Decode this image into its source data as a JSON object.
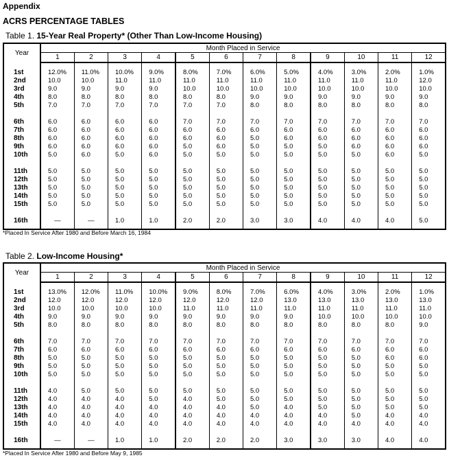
{
  "page": {
    "appendix": "Appendix",
    "heading": "ACRS PERCENTAGE TABLES"
  },
  "tables": [
    {
      "prefix": "Table 1.",
      "title": "15-Year Real Property* (Other Than Low-Income Housing)",
      "year_header": "Year",
      "month_header": "Month Placed in Service",
      "months": [
        "1",
        "2",
        "3",
        "4",
        "5",
        "6",
        "7",
        "8",
        "9",
        "10",
        "11",
        "12"
      ],
      "rows": [
        {
          "year": "1st",
          "values": [
            "12.0%",
            "11.0%",
            "10.0%",
            "9.0%",
            "8.0%",
            "7.0%",
            "6.0%",
            "5.0%",
            "4.0%",
            "3.0%",
            "2.0%",
            "1.0%"
          ]
        },
        {
          "year": "2nd",
          "values": [
            "10.0",
            "10.0",
            "11.0",
            "11.0",
            "11.0",
            "11.0",
            "11.0",
            "11.0",
            "11.0",
            "11.0",
            "11.0",
            "12.0"
          ]
        },
        {
          "year": "3rd",
          "values": [
            "9.0",
            "9.0",
            "9.0",
            "9.0",
            "10.0",
            "10.0",
            "10.0",
            "10.0",
            "10.0",
            "10.0",
            "10.0",
            "10.0"
          ]
        },
        {
          "year": "4th",
          "values": [
            "8.0",
            "8.0",
            "8.0",
            "8.0",
            "8.0",
            "8.0",
            "9.0",
            "9.0",
            "9.0",
            "9.0",
            "9.0",
            "9.0"
          ]
        },
        {
          "year": "5th",
          "values": [
            "7.0",
            "7.0",
            "7.0",
            "7.0",
            "7.0",
            "7.0",
            "8.0",
            "8.0",
            "8.0",
            "8.0",
            "8.0",
            "8.0"
          ]
        },
        {
          "year": "6th",
          "values": [
            "6.0",
            "6.0",
            "6.0",
            "6.0",
            "7.0",
            "7.0",
            "7.0",
            "7.0",
            "7.0",
            "7.0",
            "7.0",
            "7.0"
          ]
        },
        {
          "year": "7th",
          "values": [
            "6.0",
            "6.0",
            "6.0",
            "6.0",
            "6.0",
            "6.0",
            "6.0",
            "6.0",
            "6.0",
            "6.0",
            "6.0",
            "6.0"
          ]
        },
        {
          "year": "8th",
          "values": [
            "6.0",
            "6.0",
            "6.0",
            "6.0",
            "6.0",
            "6.0",
            "5.0",
            "6.0",
            "6.0",
            "6.0",
            "6.0",
            "6.0"
          ]
        },
        {
          "year": "9th",
          "values": [
            "6.0",
            "6.0",
            "6.0",
            "6.0",
            "5.0",
            "6.0",
            "5.0",
            "5.0",
            "5.0",
            "6.0",
            "6.0",
            "6.0"
          ]
        },
        {
          "year": "10th",
          "values": [
            "5.0",
            "6.0",
            "5.0",
            "6.0",
            "5.0",
            "5.0",
            "5.0",
            "5.0",
            "5.0",
            "5.0",
            "6.0",
            "5.0"
          ]
        },
        {
          "year": "11th",
          "values": [
            "5.0",
            "5.0",
            "5.0",
            "5.0",
            "5.0",
            "5.0",
            "5.0",
            "5.0",
            "5.0",
            "5.0",
            "5.0",
            "5.0"
          ]
        },
        {
          "year": "12th",
          "values": [
            "5.0",
            "5.0",
            "5.0",
            "5.0",
            "5.0",
            "5.0",
            "5.0",
            "5.0",
            "5.0",
            "5.0",
            "5.0",
            "5.0"
          ]
        },
        {
          "year": "13th",
          "values": [
            "5.0",
            "5.0",
            "5.0",
            "5.0",
            "5.0",
            "5.0",
            "5.0",
            "5.0",
            "5.0",
            "5.0",
            "5.0",
            "5.0"
          ]
        },
        {
          "year": "14th",
          "values": [
            "5.0",
            "5.0",
            "5.0",
            "5.0",
            "5.0",
            "5.0",
            "5.0",
            "5.0",
            "5.0",
            "5.0",
            "5.0",
            "5.0"
          ]
        },
        {
          "year": "15th",
          "values": [
            "5.0",
            "5.0",
            "5.0",
            "5.0",
            "5.0",
            "5.0",
            "5.0",
            "5.0",
            "5.0",
            "5.0",
            "5.0",
            "5.0"
          ]
        },
        {
          "year": "16th",
          "values": [
            "—",
            "—",
            "1.0",
            "1.0",
            "2.0",
            "2.0",
            "3.0",
            "3.0",
            "4.0",
            "4.0",
            "4.0",
            "5.0"
          ]
        }
      ],
      "footnote": "*Placed In Service After 1980 and Before March 16, 1984"
    },
    {
      "prefix": "Table 2.",
      "title": "Low-Income Housing*",
      "year_header": "Year",
      "month_header": "Month Placed in Service",
      "months": [
        "1",
        "2",
        "3",
        "4",
        "5",
        "6",
        "7",
        "8",
        "9",
        "10",
        "11",
        "12"
      ],
      "rows": [
        {
          "year": "1st",
          "values": [
            "13.0%",
            "12.0%",
            "11.0%",
            "10.0%",
            "9.0%",
            "8.0%",
            "7.0%",
            "6.0%",
            "4.0%",
            "3.0%",
            "2.0%",
            "1.0%"
          ]
        },
        {
          "year": "2nd",
          "values": [
            "12.0",
            "12.0",
            "12.0",
            "12.0",
            "12.0",
            "12.0",
            "12.0",
            "13.0",
            "13.0",
            "13.0",
            "13.0",
            "13.0"
          ]
        },
        {
          "year": "3rd",
          "values": [
            "10.0",
            "10.0",
            "10.0",
            "10.0",
            "11.0",
            "11.0",
            "11.0",
            "11.0",
            "11.0",
            "11.0",
            "11.0",
            "11.0"
          ]
        },
        {
          "year": "4th",
          "values": [
            "9.0",
            "9.0",
            "9.0",
            "9.0",
            "9.0",
            "9.0",
            "9.0",
            "9.0",
            "10.0",
            "10.0",
            "10.0",
            "10.0"
          ]
        },
        {
          "year": "5th",
          "values": [
            "8.0",
            "8.0",
            "8.0",
            "8.0",
            "8.0",
            "8.0",
            "8.0",
            "8.0",
            "8.0",
            "8.0",
            "8.0",
            "9.0"
          ]
        },
        {
          "year": "6th",
          "values": [
            "7.0",
            "7.0",
            "7.0",
            "7.0",
            "7.0",
            "7.0",
            "7.0",
            "7.0",
            "7.0",
            "7.0",
            "7.0",
            "7.0"
          ]
        },
        {
          "year": "7th",
          "values": [
            "6.0",
            "6.0",
            "6.0",
            "6.0",
            "6.0",
            "6.0",
            "6.0",
            "6.0",
            "6.0",
            "6.0",
            "6.0",
            "6.0"
          ]
        },
        {
          "year": "8th",
          "values": [
            "5.0",
            "5.0",
            "5.0",
            "5.0",
            "5.0",
            "5.0",
            "5.0",
            "5.0",
            "5.0",
            "5.0",
            "6.0",
            "6.0"
          ]
        },
        {
          "year": "9th",
          "values": [
            "5.0",
            "5.0",
            "5.0",
            "5.0",
            "5.0",
            "5.0",
            "5.0",
            "5.0",
            "5.0",
            "5.0",
            "5.0",
            "5.0"
          ]
        },
        {
          "year": "10th",
          "values": [
            "5.0",
            "5.0",
            "5.0",
            "5.0",
            "5.0",
            "5.0",
            "5.0",
            "5.0",
            "5.0",
            "5.0",
            "5.0",
            "5.0"
          ]
        },
        {
          "year": "11th",
          "values": [
            "4.0",
            "5.0",
            "5.0",
            "5.0",
            "5.0",
            "5.0",
            "5.0",
            "5.0",
            "5.0",
            "5.0",
            "5.0",
            "5.0"
          ]
        },
        {
          "year": "12th",
          "values": [
            "4.0",
            "4.0",
            "4.0",
            "5.0",
            "4.0",
            "5.0",
            "5.0",
            "5.0",
            "5.0",
            "5.0",
            "5.0",
            "5.0"
          ]
        },
        {
          "year": "13th",
          "values": [
            "4.0",
            "4.0",
            "4.0",
            "4.0",
            "4.0",
            "4.0",
            "5.0",
            "4.0",
            "5.0",
            "5.0",
            "5.0",
            "5.0"
          ]
        },
        {
          "year": "14th",
          "values": [
            "4.0",
            "4.0",
            "4.0",
            "4.0",
            "4.0",
            "4.0",
            "4.0",
            "4.0",
            "4.0",
            "5.0",
            "4.0",
            "4.0"
          ]
        },
        {
          "year": "15th",
          "values": [
            "4.0",
            "4.0",
            "4.0",
            "4.0",
            "4.0",
            "4.0",
            "4.0",
            "4.0",
            "4.0",
            "4.0",
            "4.0",
            "4.0"
          ]
        },
        {
          "year": "16th",
          "values": [
            "—",
            "—",
            "1.0",
            "1.0",
            "2.0",
            "2.0",
            "2.0",
            "3.0",
            "3.0",
            "3.0",
            "4.0",
            "4.0"
          ]
        }
      ],
      "footnote": "*Placed In Service After 1980 and Before May 9, 1985"
    }
  ]
}
